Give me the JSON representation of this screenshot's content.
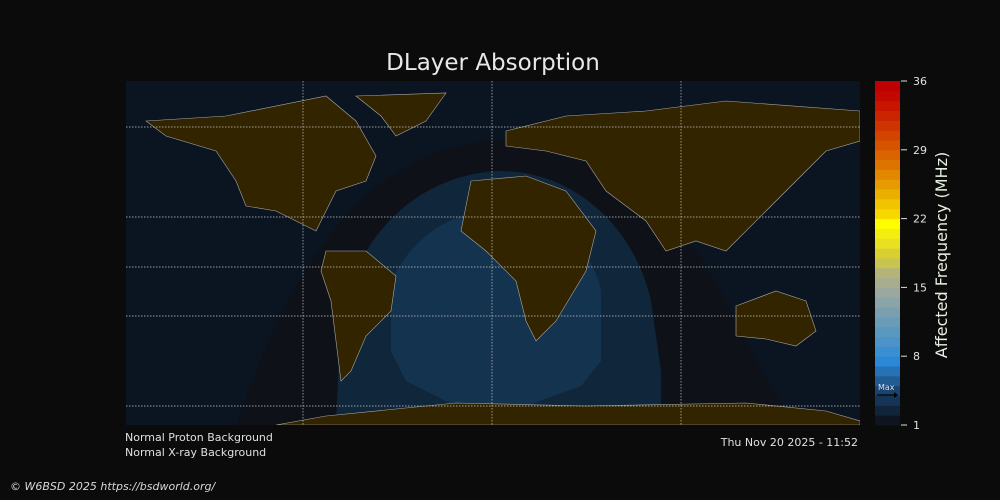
{
  "title": "DLayer Absorption",
  "status": {
    "proton": "Normal Proton Background",
    "xray": "Normal X-ray Background",
    "timestamp": "Thu Nov 20 2025 - 11:52"
  },
  "footer": "© W6BSD 2025 https://bsdworld.org/",
  "colorbar": {
    "label": "Affected Frequency (MHz)",
    "min": 1,
    "max": 36,
    "ticks": [
      "36",
      "29",
      "22",
      "15",
      "8",
      "1"
    ],
    "max_marker": "Max",
    "colors": [
      "#0e1420",
      "#10243a",
      "#153456",
      "#1a4470",
      "#205b92",
      "#2573b6",
      "#2a88d6",
      "#3a8fd0",
      "#4b93c8",
      "#5a98c0",
      "#6a9cb8",
      "#7aa0b0",
      "#8aa4a8",
      "#9aa8a0",
      "#a8ad90",
      "#b4b47a",
      "#c8c450",
      "#d8d030",
      "#e8e020",
      "#f4ee10",
      "#fefe00",
      "#f6d800",
      "#f0c400",
      "#eab000",
      "#e69c00",
      "#e28800",
      "#de7400",
      "#da6400",
      "#d65400",
      "#d24400",
      "#ce3400",
      "#ca2400",
      "#c61600",
      "#c20800",
      "#be0000"
    ]
  },
  "map": {
    "land_color": "#332400",
    "night_color": "#0b1521",
    "zone_colors": [
      "#0e1117",
      "#10263a",
      "#14334f"
    ]
  }
}
